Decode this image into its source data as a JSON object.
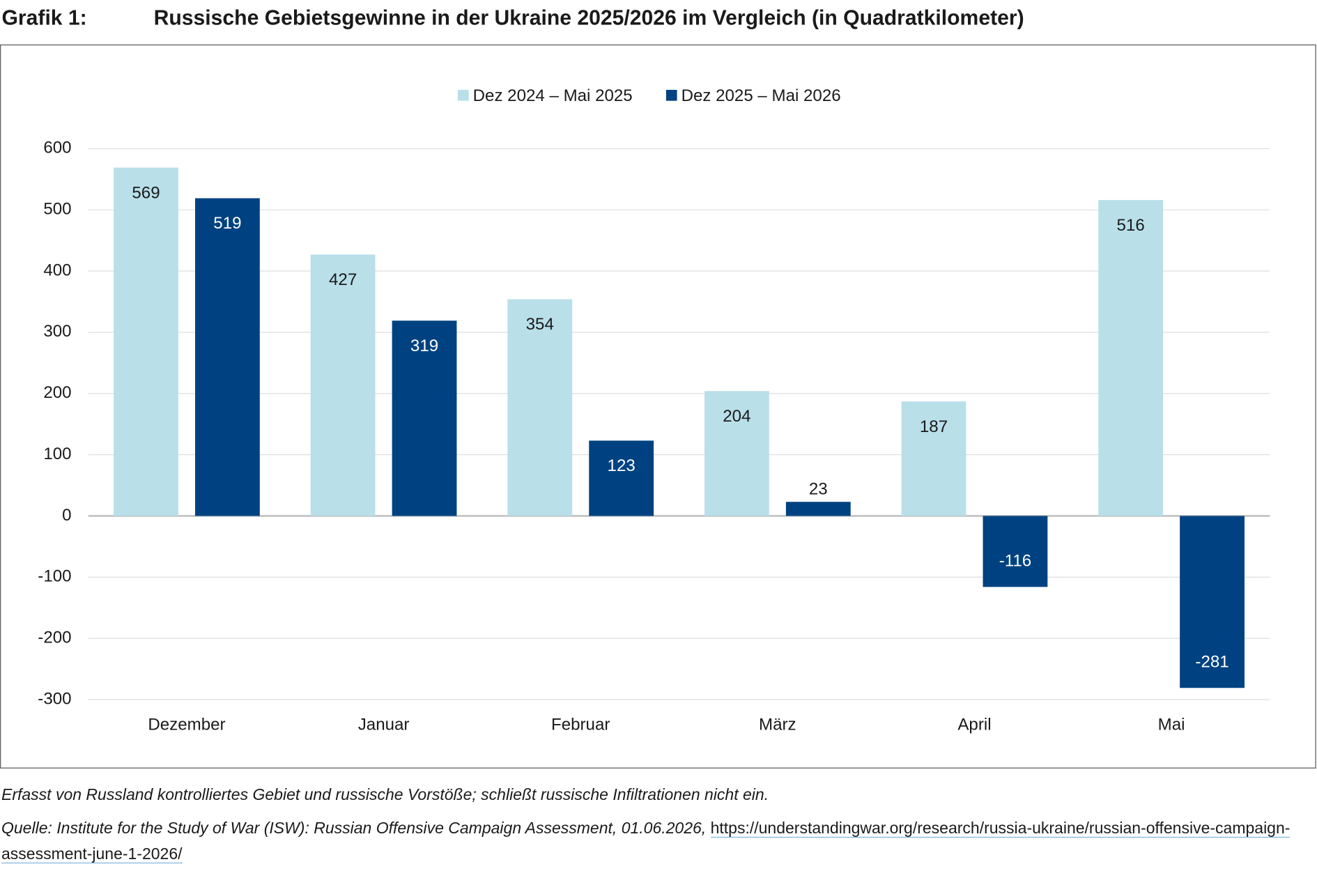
{
  "chart_data": {
    "type": "bar",
    "label": "Grafik 1:",
    "title": "Russische Gebietsgewinne in der Ukraine 2025/2026 im Vergleich (in Quadratkilometer)",
    "categories": [
      "Dezember",
      "Januar",
      "Februar",
      "März",
      "April",
      "Mai"
    ],
    "series": [
      {
        "name": "Dez 2024 – Mai 2025",
        "color": "#b9dfe9",
        "values": [
          569,
          427,
          354,
          204,
          187,
          516
        ]
      },
      {
        "name": "Dez 2025 – Mai 2026",
        "color": "#004281",
        "values": [
          519,
          319,
          123,
          23,
          -116,
          -281
        ]
      }
    ],
    "ylim": [
      -300,
      600
    ],
    "yticks": [
      -300,
      -200,
      -100,
      0,
      100,
      200,
      300,
      400,
      500,
      600
    ],
    "grid": true,
    "legend": "top",
    "note": "Erfasst von Russland kontrolliertes Gebiet und russische Vorstöße; schließt russische Infiltrationen nicht ein.",
    "source": "Quelle: Institute for the Study of War (ISW): Russian Offensive Campaign Assessment, 01.06.2026,",
    "source_url": "https://understandingwar.org/research/russia-ukraine/russian-offensive-campaign-assessment-june-1-2026/"
  }
}
